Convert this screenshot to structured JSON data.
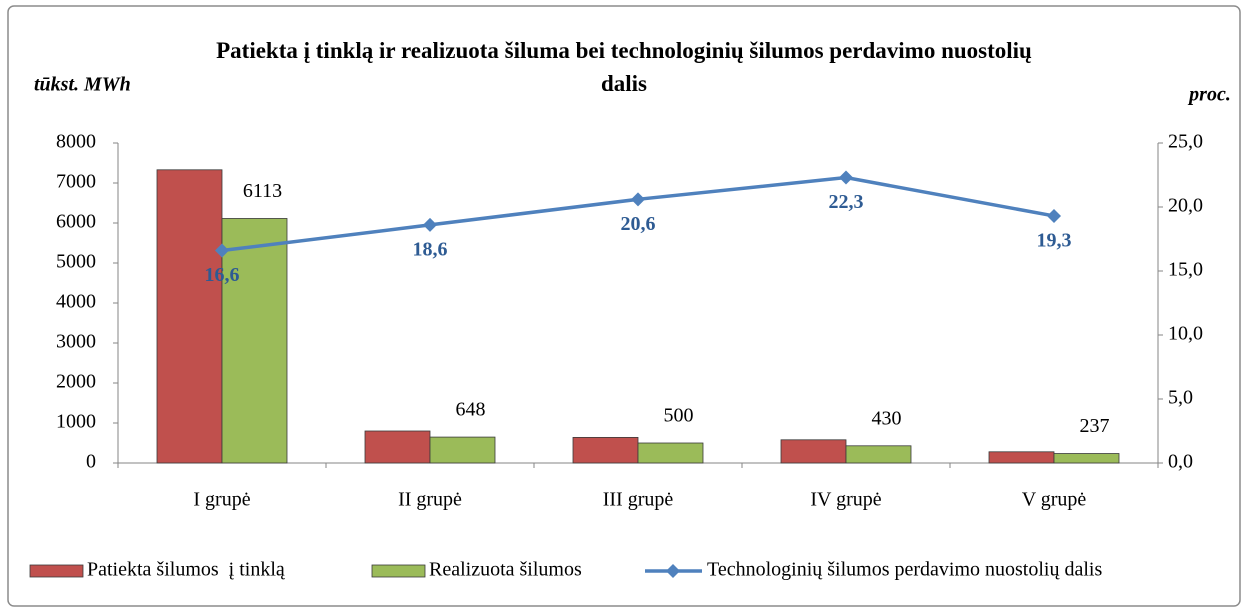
{
  "chart_data": {
    "type": "bar_line",
    "title": "Patiekta į tinklą ir realizuota šiluma bei technologinių šilumos perdavimo nuostolių dalis",
    "y_label": "tūkst. MWh",
    "y2_label": "proc.",
    "categories": [
      "I grupė",
      "II grupė",
      "III grupė",
      "IV grupė",
      "V grupė"
    ],
    "ylim": [
      0,
      8000
    ],
    "yticks": [
      0,
      1000,
      2000,
      3000,
      4000,
      5000,
      6000,
      7000,
      8000
    ],
    "y2lim": [
      0,
      25
    ],
    "y2ticks": [
      {
        "value": 0,
        "label": "0,0"
      },
      {
        "value": 5,
        "label": "5,0"
      },
      {
        "value": 10,
        "label": "10,0"
      },
      {
        "value": 15,
        "label": "15,0"
      },
      {
        "value": 20,
        "label": "20,0"
      },
      {
        "value": 25,
        "label": "25,0"
      }
    ],
    "series": [
      {
        "name": "Patiekta šilumos  į tinklą",
        "type": "bar",
        "color": "#c0504d",
        "values": [
          7330,
          800,
          640,
          580,
          280
        ]
      },
      {
        "name": "Realizuota šilumos",
        "type": "bar",
        "color": "#9bbb59",
        "values": [
          6113,
          648,
          500,
          430,
          237
        ]
      },
      {
        "name": "Technologinių šilumos perdavimo nuostolių dalis",
        "type": "line",
        "axis": "y2",
        "color": "#4f81bd",
        "values": [
          16.6,
          18.6,
          20.6,
          22.3,
          19.3
        ],
        "value_labels": [
          "16,6",
          "18,6",
          "20,6",
          "22,3",
          "19,3"
        ]
      }
    ]
  }
}
